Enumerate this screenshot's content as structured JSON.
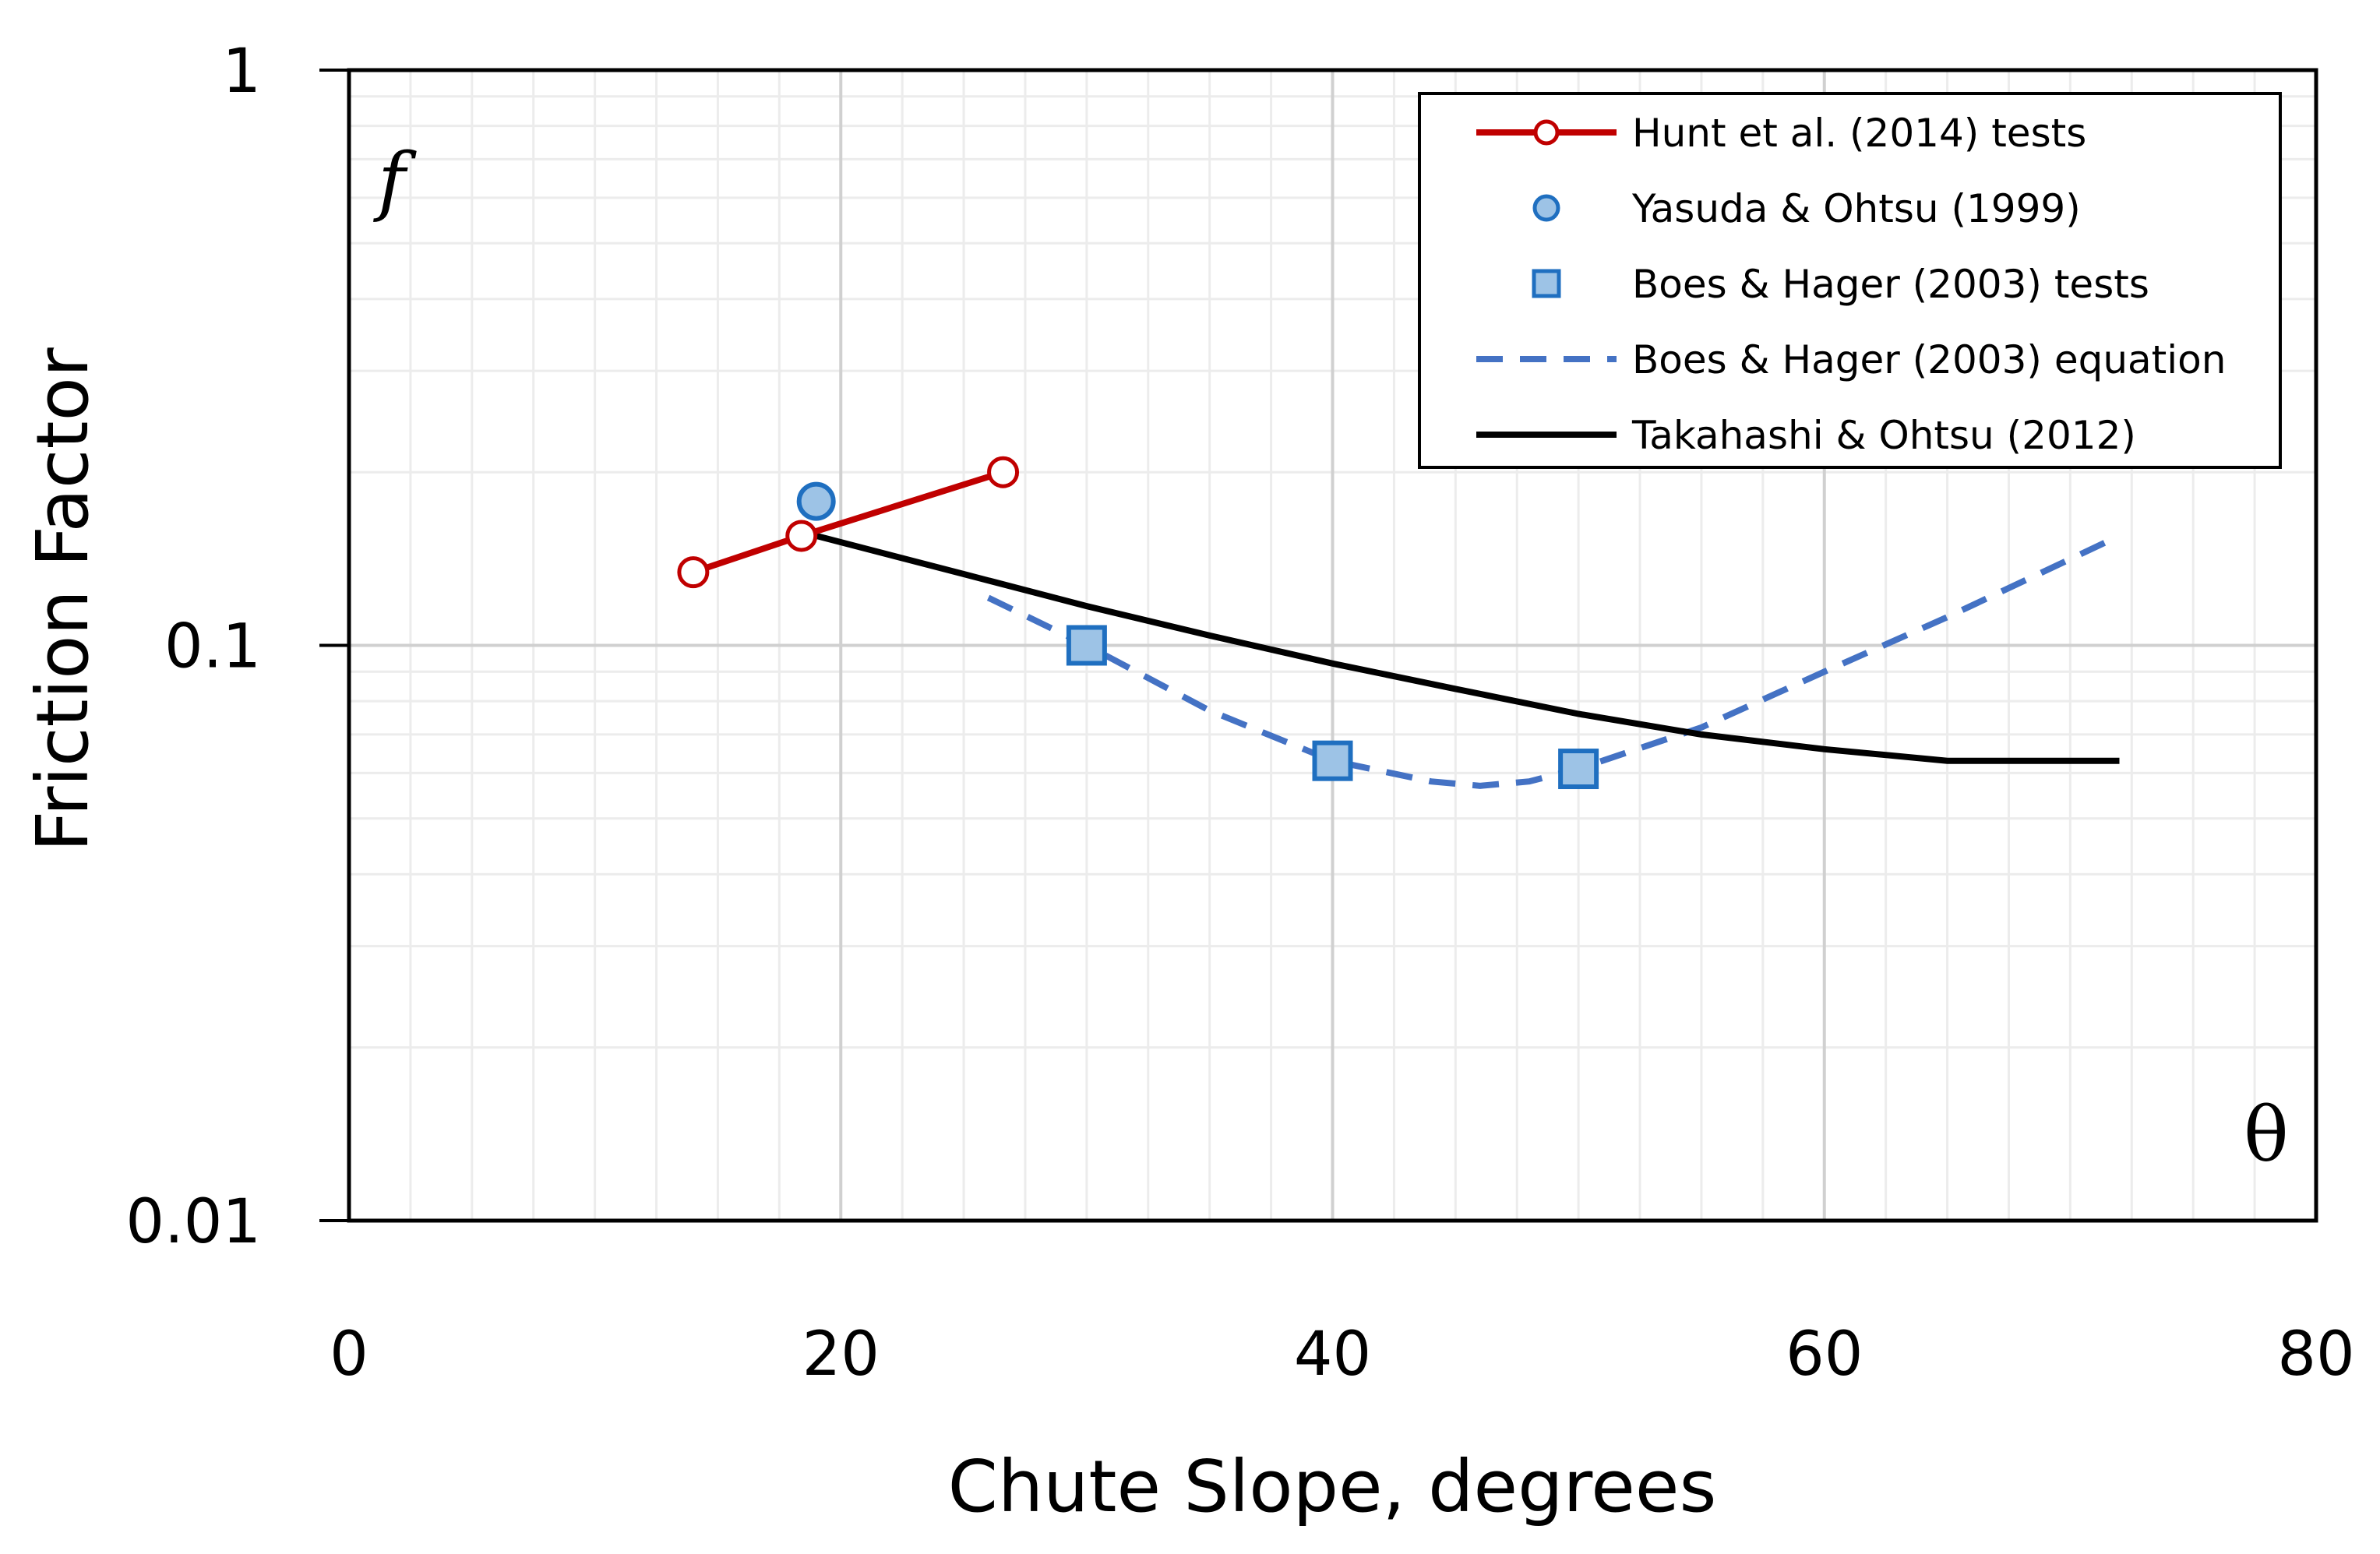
{
  "chart_data": {
    "type": "line",
    "xlabel": "Chute Slope, degrees",
    "ylabel": "Friction Factor",
    "y_symbol": "f",
    "x_symbol": "θ",
    "xlim": [
      0,
      80
    ],
    "ylim": [
      0.01,
      1
    ],
    "y_scale": "log",
    "grid": true,
    "legend_position": "top-right",
    "x_ticks": [
      0,
      20,
      40,
      60,
      80
    ],
    "x_tick_labels": [
      "0",
      "20",
      "40",
      "60",
      "80"
    ],
    "y_ticks": [
      0.01,
      0.1,
      1
    ],
    "y_tick_labels": [
      "0.01",
      "0.1",
      "1"
    ],
    "series": [
      {
        "name": "Hunt et al. (2014) tests",
        "style": "line-open-circle",
        "color": "#c00000",
        "points": [
          [
            14,
            0.134
          ],
          [
            18.4,
            0.155
          ],
          [
            26.6,
            0.2
          ]
        ]
      },
      {
        "name": "Yasuda & Ohtsu (1999)",
        "style": "filled-circle",
        "color": "#1f6fc0",
        "fill": "#9dc3e6",
        "points": [
          [
            19,
            0.178
          ]
        ]
      },
      {
        "name": "Boes & Hager (2003) tests",
        "style": "filled-square",
        "color": "#1f6fc0",
        "fill": "#9dc3e6",
        "points": [
          [
            30,
            0.1
          ],
          [
            40,
            0.063
          ],
          [
            50,
            0.061
          ]
        ]
      },
      {
        "name": "Boes & Hager (2003) equation",
        "style": "dashed-line",
        "color": "#4472c4",
        "points": [
          [
            26,
            0.121
          ],
          [
            30,
            0.1
          ],
          [
            35,
            0.077
          ],
          [
            40,
            0.063
          ],
          [
            44,
            0.058
          ],
          [
            46,
            0.057
          ],
          [
            48,
            0.058
          ],
          [
            50,
            0.061
          ],
          [
            55,
            0.072
          ],
          [
            60,
            0.09
          ],
          [
            65,
            0.112
          ],
          [
            72,
            0.155
          ]
        ]
      },
      {
        "name": "Takahashi & Ohtsu (2012)",
        "style": "solid-line",
        "color": "#000000",
        "points": [
          [
            19,
            0.155
          ],
          [
            25,
            0.133
          ],
          [
            30,
            0.117
          ],
          [
            35,
            0.104
          ],
          [
            40,
            0.093
          ],
          [
            45,
            0.084
          ],
          [
            50,
            0.076
          ],
          [
            55,
            0.07
          ],
          [
            60,
            0.066
          ],
          [
            65,
            0.063
          ],
          [
            72,
            0.063
          ]
        ]
      }
    ]
  }
}
